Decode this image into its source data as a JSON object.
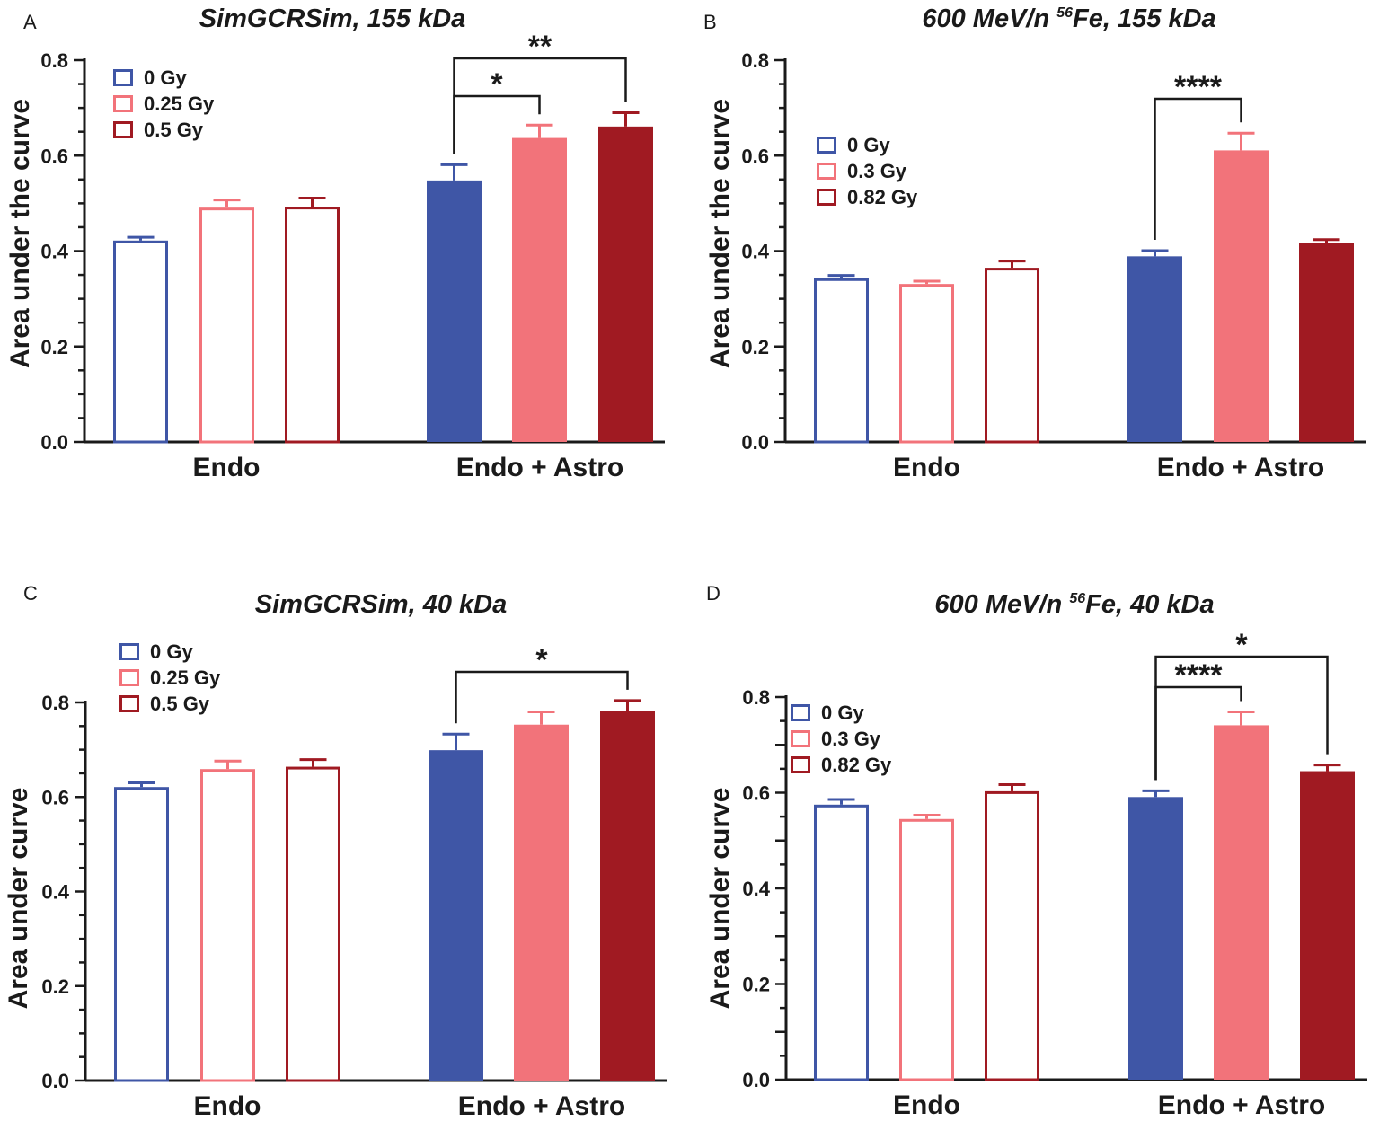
{
  "colors": {
    "c0": "#3f56a6",
    "c1": "#f2737a",
    "c2": "#a01a22",
    "axis": "#1a1a1a"
  },
  "chart_data": [
    {
      "type": "bar",
      "panel": "A",
      "title": "SimGCRSim, 155 kDa",
      "title_sup": "",
      "ylabel": "Area under the curve",
      "ylim": [
        0,
        0.8
      ],
      "yticks": [
        0.0,
        0.2,
        0.4,
        0.6,
        0.8
      ],
      "ytick_labels": [
        "0.0",
        "0.2",
        "0.4",
        "0.6",
        "0.8"
      ],
      "categories": [
        "Endo",
        "Endo + Astro"
      ],
      "series": [
        {
          "name": "0 Gy",
          "values": [
            0.422,
            0.548
          ],
          "errors": [
            0.007,
            0.033
          ]
        },
        {
          "name": "0.25 Gy",
          "values": [
            0.491,
            0.637
          ],
          "errors": [
            0.016,
            0.027
          ]
        },
        {
          "name": "0.5 Gy",
          "values": [
            0.493,
            0.661
          ],
          "errors": [
            0.018,
            0.029
          ]
        }
      ],
      "legend": [
        "0 Gy",
        "0.25 Gy",
        "0.5 Gy"
      ],
      "legend_position": "top-left",
      "significance": [
        {
          "category": 1,
          "from": 0,
          "to": 1,
          "label": "*",
          "level": 0.72
        },
        {
          "category": 1,
          "from": 0,
          "to": 2,
          "label": "**",
          "level": 0.8
        }
      ]
    },
    {
      "type": "bar",
      "panel": "B",
      "title": "600 MeV/n ",
      "title_sup": "56",
      "title_rest": "Fe, 155 kDa",
      "ylabel": "Area under the curve",
      "ylim": [
        0,
        0.8
      ],
      "yticks": [
        0.0,
        0.2,
        0.4,
        0.6,
        0.8
      ],
      "ytick_labels": [
        "0.0",
        "0.2",
        "0.4",
        "0.6",
        "0.8"
      ],
      "categories": [
        "Endo",
        "Endo + Astro"
      ],
      "series": [
        {
          "name": "0 Gy",
          "values": [
            0.343,
            0.389
          ],
          "errors": [
            0.006,
            0.012
          ]
        },
        {
          "name": "0.3 Gy",
          "values": [
            0.331,
            0.611
          ],
          "errors": [
            0.006,
            0.036
          ]
        },
        {
          "name": "0.82 Gy",
          "values": [
            0.365,
            0.417
          ],
          "errors": [
            0.014,
            0.007
          ]
        }
      ],
      "legend": [
        "0 Gy",
        "0.3 Gy",
        "0.82 Gy"
      ],
      "legend_position": "middle-left",
      "significance": [
        {
          "category": 1,
          "from": 0,
          "to": 1,
          "label": "****",
          "level": 0.72
        }
      ]
    },
    {
      "type": "bar",
      "panel": "C",
      "title": "SimGCRSim, 40 kDa",
      "title_sup": "",
      "ylabel": "Area under curve",
      "ylim": [
        0,
        0.8
      ],
      "yticks": [
        0.0,
        0.2,
        0.4,
        0.6,
        0.8
      ],
      "ytick_labels": [
        "0.0",
        "0.2",
        "0.4",
        "0.6",
        "0.8"
      ],
      "categories": [
        "Endo",
        "Endo + Astro"
      ],
      "series": [
        {
          "name": "0 Gy",
          "values": [
            0.621,
            0.699
          ],
          "errors": [
            0.009,
            0.034
          ]
        },
        {
          "name": "0.25 Gy",
          "values": [
            0.659,
            0.753
          ],
          "errors": [
            0.017,
            0.027
          ]
        },
        {
          "name": "0.5 Gy",
          "values": [
            0.664,
            0.781
          ],
          "errors": [
            0.015,
            0.023
          ]
        }
      ],
      "legend": [
        "0 Gy",
        "0.25 Gy",
        "0.5 Gy"
      ],
      "legend_position": "top-left",
      "significance": [
        {
          "category": 1,
          "from": 0,
          "to": 2,
          "label": "*",
          "level": 0.86
        }
      ]
    },
    {
      "type": "bar",
      "panel": "D",
      "title": "600 MeV/n ",
      "title_sup": "56",
      "title_rest": "Fe, 40 kDa",
      "ylabel": "Area under curve",
      "ylim": [
        0,
        0.8
      ],
      "yticks": [
        0.0,
        0.1,
        0.2,
        0.3,
        0.4,
        0.5,
        0.6,
        0.7,
        0.8
      ],
      "ytick_labels": [
        "0.0",
        "",
        "0.2",
        "",
        "0.4",
        "",
        "0.6",
        "",
        "0.8"
      ],
      "categories": [
        "Endo",
        "Endo + Astro"
      ],
      "series": [
        {
          "name": "0 Gy",
          "values": [
            0.575,
            0.591
          ],
          "errors": [
            0.011,
            0.013
          ]
        },
        {
          "name": "0.3 Gy",
          "values": [
            0.545,
            0.741
          ],
          "errors": [
            0.008,
            0.028
          ]
        },
        {
          "name": "0.82 Gy",
          "values": [
            0.603,
            0.645
          ],
          "errors": [
            0.014,
            0.013
          ]
        }
      ],
      "legend": [
        "0 Gy",
        "0.3 Gy",
        "0.82 Gy"
      ],
      "legend_position": "top-left",
      "significance": [
        {
          "category": 1,
          "from": 0,
          "to": 1,
          "label": "****",
          "level": 0.81
        },
        {
          "category": 1,
          "from": 0,
          "to": 2,
          "label": "*",
          "level": 0.88
        }
      ]
    }
  ]
}
